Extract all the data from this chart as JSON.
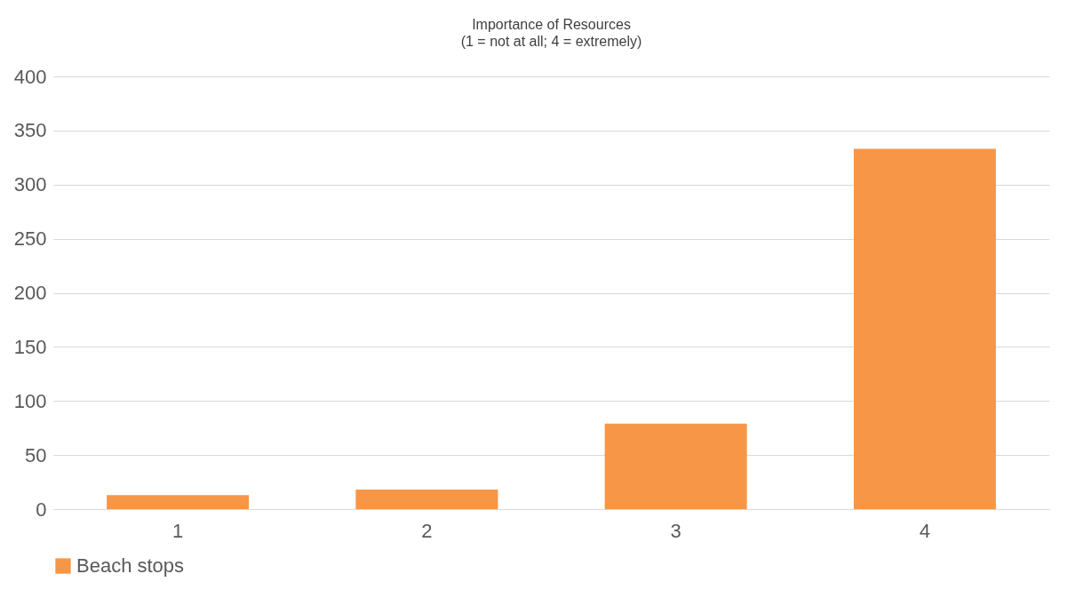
{
  "chart_data": {
    "type": "bar",
    "title": "Importance of Resources",
    "subtitle": "(1 = not at all; 4 = extremely)",
    "categories": [
      "1",
      "2",
      "3",
      "4"
    ],
    "series": [
      {
        "name": "Beach stops",
        "color": "#f79646",
        "values": [
          13,
          18,
          79,
          333
        ]
      }
    ],
    "ylim": [
      0,
      400
    ],
    "yticks": [
      0,
      50,
      100,
      150,
      200,
      250,
      300,
      350,
      400
    ],
    "grid": "y",
    "legend": "bottom"
  }
}
